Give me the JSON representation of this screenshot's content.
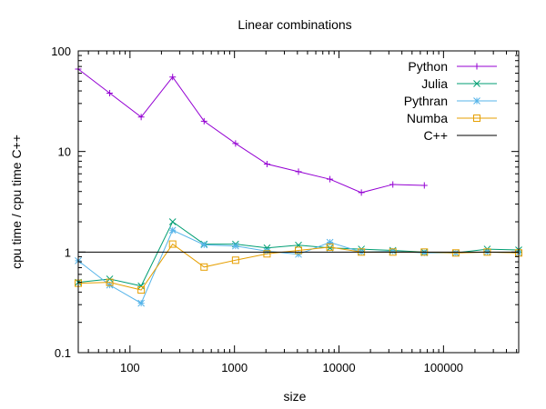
{
  "chart_data": {
    "type": "line",
    "title": "Linear combinations",
    "xlabel": "size",
    "ylabel": "cpu time / cpu time C++",
    "xscale": "log",
    "yscale": "log",
    "xlim": [
      32,
      524288
    ],
    "ylim": [
      0.1,
      100
    ],
    "xticks": [
      100,
      1000,
      10000,
      100000
    ],
    "xtick_labels": [
      "100",
      "1000",
      "10000",
      "100000"
    ],
    "yticks": [
      0.1,
      1,
      10,
      100
    ],
    "ytick_labels": [
      "0.1",
      "1",
      "10",
      "100"
    ],
    "grid": false,
    "legend_position": "top-right",
    "series": [
      {
        "name": "Python",
        "color": "#9400d3",
        "marker": "plus",
        "x": [
          32,
          64,
          128,
          256,
          512,
          1024,
          2048,
          4096,
          8192,
          16384,
          32768,
          65536
        ],
        "y": [
          66,
          38,
          22,
          55,
          20,
          12,
          7.5,
          6.3,
          5.3,
          3.9,
          4.7,
          4.6
        ]
      },
      {
        "name": "Julia",
        "color": "#009e73",
        "marker": "cross",
        "x": [
          32,
          64,
          128,
          256,
          512,
          1024,
          2048,
          4096,
          8192,
          16384,
          32768,
          65536,
          131072,
          262144,
          524288
        ],
        "y": [
          0.5,
          0.54,
          0.46,
          2.0,
          1.2,
          1.2,
          1.1,
          1.17,
          1.1,
          1.07,
          1.04,
          1.0,
          0.98,
          1.07,
          1.05
        ]
      },
      {
        "name": "Pythran",
        "color": "#56b4e9",
        "marker": "star",
        "x": [
          32,
          64,
          128,
          256,
          512,
          1024,
          2048,
          4096,
          8192,
          16384,
          32768,
          65536,
          131072,
          262144,
          524288
        ],
        "y": [
          0.82,
          0.47,
          0.31,
          1.65,
          1.18,
          1.15,
          1.02,
          0.95,
          1.25,
          1.0,
          1.02,
          0.98,
          0.98,
          1.0,
          0.98
        ]
      },
      {
        "name": "Numba",
        "color": "#e69f00",
        "marker": "square",
        "x": [
          32,
          64,
          128,
          256,
          512,
          1024,
          2048,
          4096,
          8192,
          16384,
          32768,
          65536,
          131072,
          262144,
          524288
        ],
        "y": [
          0.49,
          0.5,
          0.42,
          1.2,
          0.71,
          0.83,
          0.96,
          1.04,
          1.12,
          1.0,
          1.0,
          1.0,
          0.98,
          1.0,
          0.98
        ]
      },
      {
        "name": "C++",
        "color": "#000000",
        "marker": "none",
        "x": [
          32,
          524288
        ],
        "y": [
          1,
          1
        ]
      }
    ]
  }
}
